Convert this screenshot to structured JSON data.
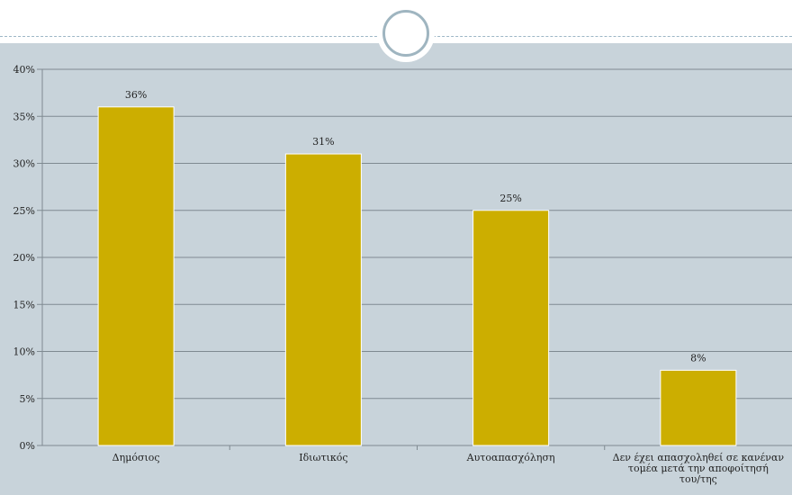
{
  "theme": {
    "bar_color": "#ccae00",
    "plot_background": "#c8d3da",
    "gridline_color": "#7f8a91",
    "header_accent": "#9fb5c0"
  },
  "chart_data": {
    "type": "bar",
    "categories": [
      [
        "Δημόσιος"
      ],
      [
        "Ιδιωτικός"
      ],
      [
        "Αυτοαπασχόληση"
      ],
      [
        "Δεν έχει απασχοληθεί σε κανέναν",
        "τομέα μετά την αποφοίτησή",
        "του/της"
      ]
    ],
    "values": [
      36,
      31,
      25,
      8
    ],
    "data_labels": [
      "36%",
      "31%",
      "25%",
      "8%"
    ],
    "ylim": [
      0,
      40
    ],
    "ytick_values": [
      0,
      5,
      10,
      15,
      20,
      25,
      30,
      35,
      40
    ],
    "ytick_labels": [
      "0%",
      "5%",
      "10%",
      "15%",
      "20%",
      "25%",
      "30%",
      "35%",
      "40%"
    ],
    "grid": true,
    "legend": "none"
  }
}
